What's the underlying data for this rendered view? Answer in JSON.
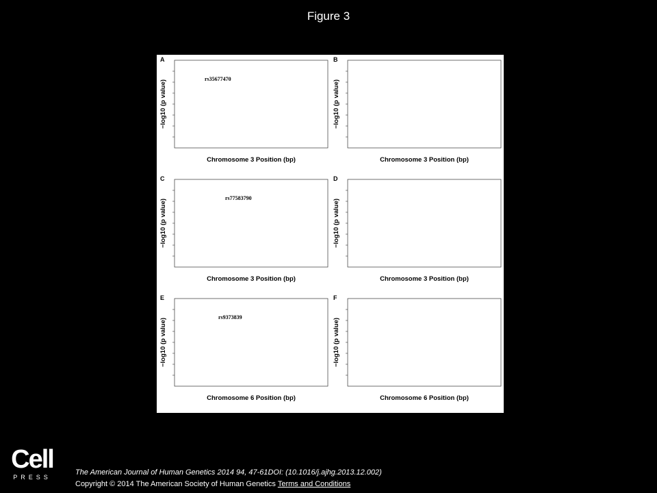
{
  "header": {
    "title": "Figure 3"
  },
  "figure": {
    "panels": [
      {
        "label": "A",
        "y_axis_label": "−log10 (p value)",
        "x_axis_label": "Chromosome 3 Position (bp)",
        "snp_label": "rs35677470"
      },
      {
        "label": "B",
        "y_axis_label": "−log10 (p value)",
        "x_axis_label": "Chromosome 3 Position (bp)"
      },
      {
        "label": "C",
        "y_axis_label": "−log10 (p value)",
        "x_axis_label": "Chromosome 3 Position (bp)",
        "snp_label": "rs77583790"
      },
      {
        "label": "D",
        "y_axis_label": "−log10 (p value)",
        "x_axis_label": "Chromosome 3 Position (bp)"
      },
      {
        "label": "E",
        "y_axis_label": "−log10 (p value)",
        "x_axis_label": "Chromosome 6 Position (bp)",
        "snp_label": "rs9373839"
      },
      {
        "label": "F",
        "y_axis_label": "−log10 (p value)",
        "x_axis_label": "Chromosome 6 Position (bp)"
      }
    ]
  },
  "footer": {
    "logo": {
      "word": "Cell",
      "sub": "PRESS"
    },
    "citation": "The American Journal of Human Genetics 2014 94, 47-61DOI: (10.1016/j.ajhg.2013.12.002)",
    "copyright": "Copyright © 2014 The American Society of Human Genetics",
    "link": "Terms and Conditions"
  }
}
